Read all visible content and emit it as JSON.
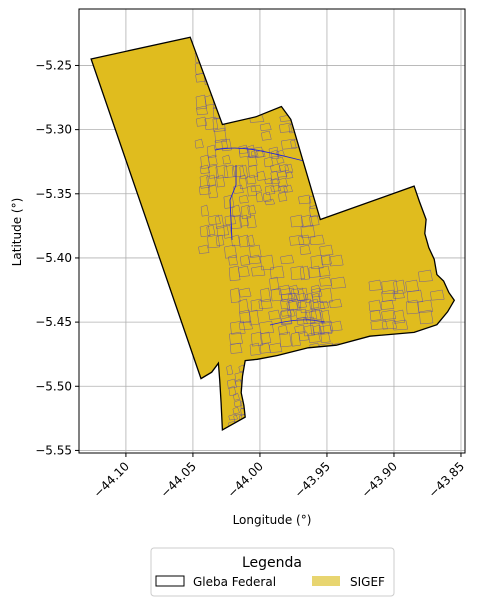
{
  "chart_data": {
    "type": "map",
    "xlabel": "Longitude (°)",
    "ylabel": "Latitude (°)",
    "xlim": [
      -44.135,
      -43.847
    ],
    "ylim": [
      -5.552,
      -5.206
    ],
    "grid": true,
    "xticks": [
      -44.1,
      -44.05,
      -44.0,
      -43.95,
      -43.9,
      -43.85
    ],
    "xtick_labels": [
      "−44.10",
      "−44.05",
      "−44.00",
      "−43.95",
      "−43.90",
      "−43.85"
    ],
    "yticks": [
      -5.25,
      -5.3,
      -5.35,
      -5.4,
      -5.45,
      -5.5,
      -5.55
    ],
    "ytick_labels": [
      "−5.25",
      "−5.30",
      "−5.35",
      "−5.40",
      "−5.45",
      "−5.50",
      "−5.55"
    ],
    "gleba_boundary": [
      [
        -44.126,
        -5.245
      ],
      [
        -44.052,
        -5.228
      ],
      [
        -44.028,
        -5.296
      ],
      [
        -44.003,
        -5.29
      ],
      [
        -43.984,
        -5.282
      ],
      [
        -43.977,
        -5.292
      ],
      [
        -43.955,
        -5.37
      ],
      [
        -43.885,
        -5.344
      ],
      [
        -43.881,
        -5.356
      ],
      [
        -43.876,
        -5.37
      ],
      [
        -43.877,
        -5.381
      ],
      [
        -43.874,
        -5.392
      ],
      [
        -43.87,
        -5.401
      ],
      [
        -43.868,
        -5.413
      ],
      [
        -43.863,
        -5.418
      ],
      [
        -43.859,
        -5.427
      ],
      [
        -43.855,
        -5.433
      ],
      [
        -43.86,
        -5.442
      ],
      [
        -43.868,
        -5.452
      ],
      [
        -43.885,
        -5.458
      ],
      [
        -43.918,
        -5.461
      ],
      [
        -43.943,
        -5.468
      ],
      [
        -43.964,
        -5.47
      ],
      [
        -43.987,
        -5.476
      ],
      [
        -44.002,
        -5.479
      ],
      [
        -44.011,
        -5.48
      ],
      [
        -44.013,
        -5.492
      ],
      [
        -44.014,
        -5.505
      ],
      [
        -44.012,
        -5.515
      ],
      [
        -44.011,
        -5.524
      ],
      [
        -44.028,
        -5.534
      ],
      [
        -44.029,
        -5.513
      ],
      [
        -44.03,
        -5.495
      ],
      [
        -44.031,
        -5.482
      ],
      [
        -44.036,
        -5.489
      ],
      [
        -44.044,
        -5.494
      ],
      [
        -44.126,
        -5.245
      ]
    ],
    "legend": {
      "title": "Legenda",
      "entries": [
        {
          "label": "Gleba Federal",
          "style": "outline"
        },
        {
          "label": "SIGEF",
          "style": "fill"
        }
      ]
    },
    "colors": {
      "sigef_fill": "#e0bc1e",
      "sigef_legend_patch": "#e8d570",
      "parcel_edge": "#4b3fc0",
      "boundary": "#000000",
      "grid": "#b0b0b0"
    }
  }
}
